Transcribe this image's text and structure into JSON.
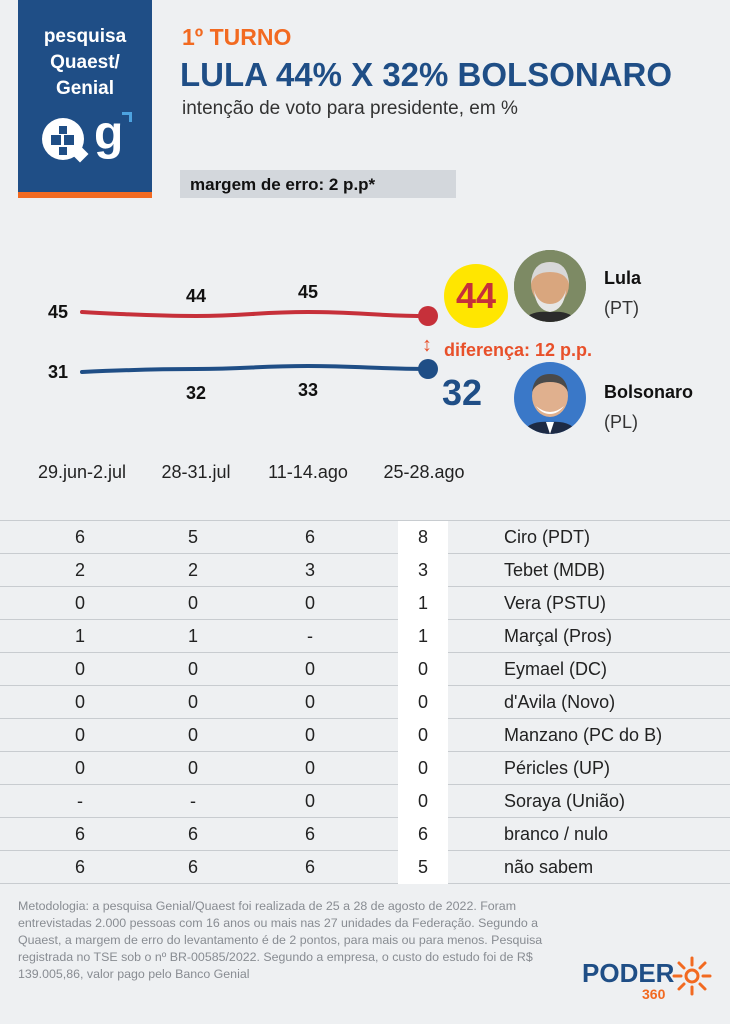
{
  "brand": {
    "line1": "pesquisa",
    "line2": "Quaest/",
    "line3": "Genial"
  },
  "header": {
    "turno": "1º TURNO",
    "headline": "LULA 44% X 32% BOLSONARO",
    "subtitle": "intenção de voto para presidente, em %",
    "margin": "margem de erro: 2 p.p*"
  },
  "chart_data": {
    "type": "line",
    "categories": [
      "29.jun-2.jul",
      "28-31.jul",
      "11-14.ago",
      "25-28.ago"
    ],
    "series": [
      {
        "name": "Lula",
        "party": "(PT)",
        "color": "#c6303a",
        "values": [
          45,
          44,
          45,
          44
        ]
      },
      {
        "name": "Bolsonaro",
        "party": "(PL)",
        "color": "#1f4e86",
        "values": [
          31,
          32,
          33,
          32
        ]
      }
    ],
    "lula_final_label": "44",
    "bolsonaro_final_label": "32",
    "difference_label": "diferença: 12 p.p.",
    "difference_arrow": "↕"
  },
  "table": {
    "rows": [
      {
        "values": [
          "6",
          "5",
          "6",
          "8"
        ],
        "name": "Ciro (PDT)"
      },
      {
        "values": [
          "2",
          "2",
          "3",
          "3"
        ],
        "name": "Tebet (MDB)"
      },
      {
        "values": [
          "0",
          "0",
          "0",
          "1"
        ],
        "name": "Vera (PSTU)"
      },
      {
        "values": [
          "1",
          "1",
          "-",
          "1"
        ],
        "name": "Marçal (Pros)"
      },
      {
        "values": [
          "0",
          "0",
          "0",
          "0"
        ],
        "name": "Eymael (DC)"
      },
      {
        "values": [
          "0",
          "0",
          "0",
          "0"
        ],
        "name": "d'Avila (Novo)"
      },
      {
        "values": [
          "0",
          "0",
          "0",
          "0"
        ],
        "name": "Manzano (PC do B)"
      },
      {
        "values": [
          "0",
          "0",
          "0",
          "0"
        ],
        "name": "Péricles (UP)"
      },
      {
        "values": [
          "-",
          "-",
          "0",
          "0"
        ],
        "name": "Soraya (União)"
      },
      {
        "values": [
          "6",
          "6",
          "6",
          "6"
        ],
        "name": "branco / nulo"
      },
      {
        "values": [
          "6",
          "6",
          "6",
          "5"
        ],
        "name": "não sabem"
      }
    ]
  },
  "methodology": "Metodologia: a pesquisa Genial/Quaest foi realizada de 25 a 28 de agosto de 2022. Foram entrevistadas 2.000 pessoas com 16 anos ou mais nas 27 unidades da Federação. Segundo a Quaest, a margem de erro do levantamento é de 2 pontos, para mais ou para menos. Pesquisa registrada no TSE sob o nº BR-00585/2022. Segundo a empresa, o custo do estudo foi de R$ 139.005,86, valor pago pelo Banco Genial",
  "footer_logo": {
    "text": "PODER",
    "number": "360"
  }
}
